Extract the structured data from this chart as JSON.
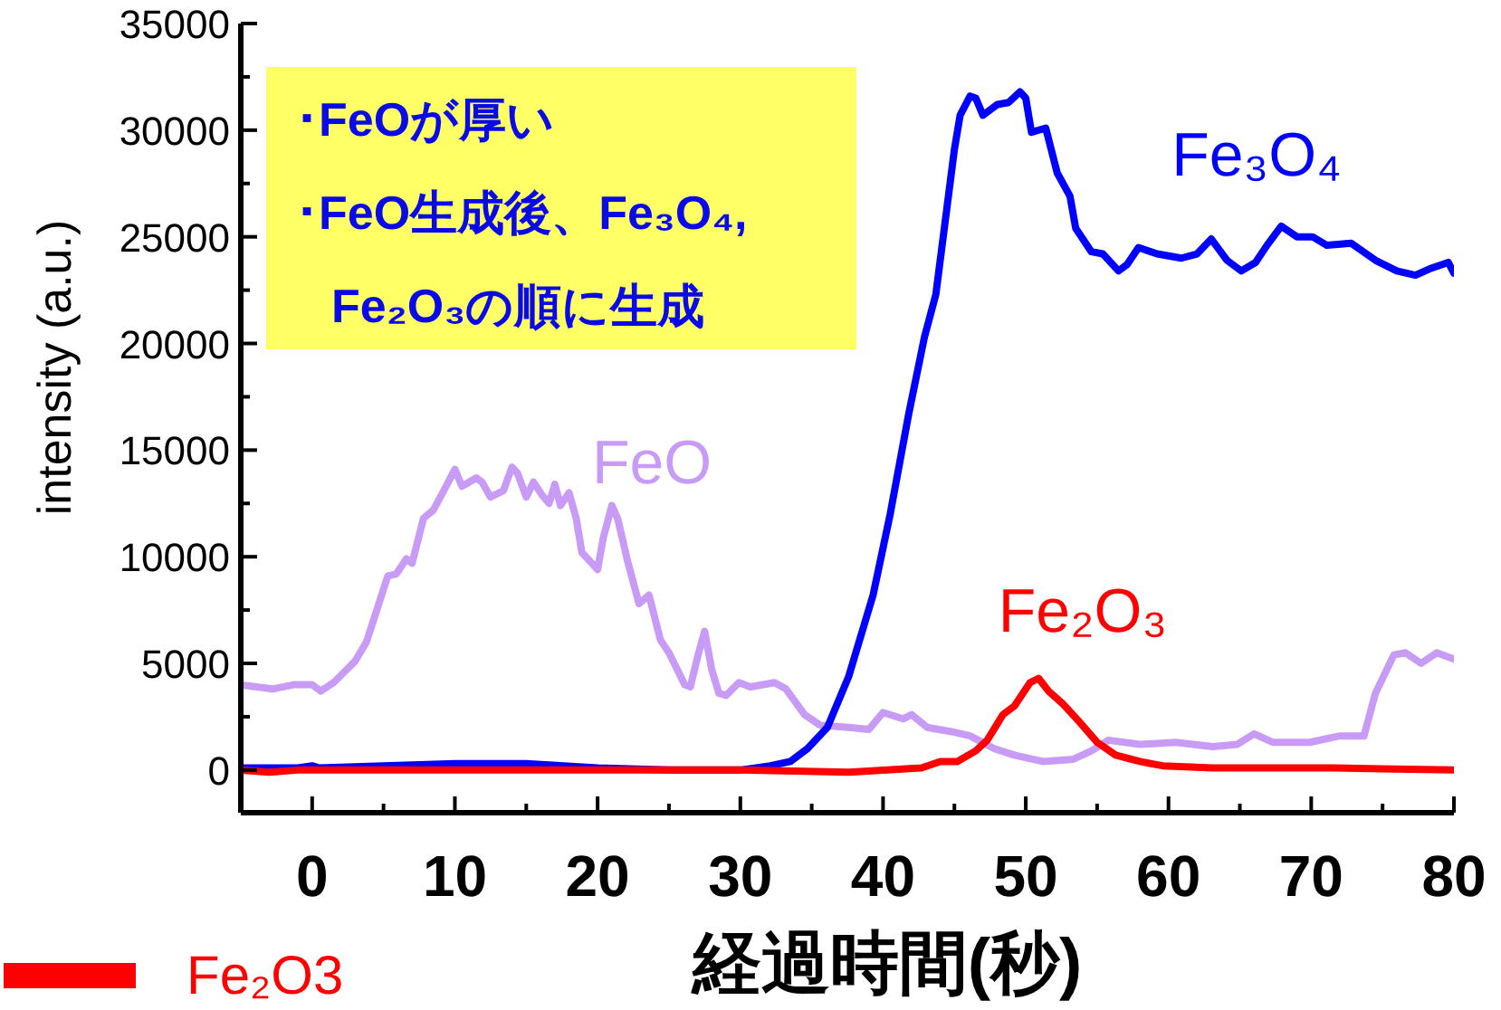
{
  "chart_data": {
    "type": "line",
    "xlabel": "経過時間(秒)",
    "ylabel": "intensity (a.u.)",
    "xlim": [
      -5,
      80
    ],
    "xticks": [
      0,
      {
        "value": 5,
        "label": null
      },
      10,
      {
        "value": 15,
        "label": null
      },
      20,
      {
        "value": 25,
        "label": null
      },
      30,
      {
        "value": 35,
        "label": null
      },
      40,
      {
        "value": 45,
        "label": null
      },
      50,
      {
        "value": 55,
        "label": null
      },
      60,
      {
        "value": 65,
        "label": null
      },
      70,
      {
        "value": 75,
        "label": null
      },
      80
    ],
    "ylim": [
      -2000,
      35000
    ],
    "yticks": [
      0,
      {
        "value": 2500,
        "label": null
      },
      5000,
      {
        "value": 7500,
        "label": null
      },
      10000,
      {
        "value": 12500,
        "label": null
      },
      15000,
      {
        "value": 17500,
        "label": null
      },
      20000,
      {
        "value": 22500,
        "label": null
      },
      25000,
      {
        "value": 27500,
        "label": null
      },
      30000,
      {
        "value": 32500,
        "label": null
      },
      35000
    ],
    "legend": "bottom left",
    "marker": "none",
    "line_style": "solid",
    "annotations": [
      "･FeOが厚い",
      "･FeO生成後、Fe₃O₄,",
      "Fe₂O₃の順に生成",
      "FeO",
      "Fe₃O₄",
      "Fe₂O₃"
    ],
    "series": [
      {
        "color": "#c89bf7",
        "x": [
          -5,
          -2.8,
          -1.3,
          0,
          0.6,
          1.5,
          3,
          3.8,
          5.3,
          5.9,
          6.6,
          7,
          7.8,
          8.5,
          9.3,
          10,
          10.5,
          11.5,
          11.9,
          12.5,
          13.4,
          14,
          14.4,
          15,
          15.5,
          16.1,
          16.6,
          17,
          17.4,
          18,
          18.5,
          18.9,
          20,
          20.4,
          21,
          21.4,
          22.1,
          22.9,
          23.6,
          24.4,
          25,
          26.1,
          26.5,
          27,
          27.5,
          28,
          28.5,
          29,
          29.9,
          30.7,
          32.4,
          33.2,
          34.5,
          35.6,
          37.6,
          39,
          40,
          41.4,
          42,
          43.1,
          44.8,
          46.1,
          47.8,
          49.2,
          51.2,
          53.3,
          54.6,
          55.8,
          58,
          60.5,
          63.1,
          64.8,
          66,
          67.3,
          69.9,
          72,
          73.7,
          74.5,
          75.8,
          76.6,
          77.7,
          78.8,
          80
        ],
        "values": [
          4000,
          3800,
          4000,
          4000,
          3700,
          4100,
          5100,
          6000,
          9100,
          9200,
          9900,
          9700,
          11800,
          12200,
          13200,
          14100,
          13300,
          13700,
          13500,
          12800,
          13100,
          14200,
          13900,
          12800,
          13500,
          12900,
          12500,
          13400,
          12400,
          13000,
          11800,
          10200,
          9400,
          10900,
          12400,
          11800,
          9800,
          7800,
          8200,
          6100,
          5500,
          4000,
          3900,
          5300,
          6500,
          4700,
          3600,
          3500,
          4100,
          3900,
          4100,
          3800,
          2600,
          2100,
          2000,
          1900,
          2700,
          2400,
          2600,
          2000,
          1800,
          1600,
          1000,
          700,
          400,
          500,
          900,
          1400,
          1200,
          1300,
          1100,
          1200,
          1700,
          1300,
          1300,
          1600,
          1600,
          3600,
          5400,
          5500,
          5000,
          5500,
          5200
        ]
      },
      {
        "color": "#0000ff",
        "x": [
          -5,
          -1,
          0,
          0.5,
          5,
          10,
          15,
          20,
          25,
          30,
          32.1,
          33.5,
          34.7,
          36.1,
          37.6,
          39.3,
          40.5,
          41.8,
          42.9,
          43.7,
          45,
          45.4,
          46.1,
          46.5,
          47,
          48,
          48.8,
          49.6,
          50,
          50.4,
          51.4,
          52.2,
          53.1,
          53.5,
          54.6,
          55.4,
          56.5,
          57.1,
          57.9,
          59.2,
          60.9,
          62,
          63,
          64.1,
          65.1,
          66.1,
          66.9,
          67.9,
          69,
          70.1,
          71.1,
          72.8,
          74.5,
          76,
          77.3,
          78.3,
          79.6,
          80
        ],
        "values": [
          100,
          100,
          200,
          100,
          200,
          300,
          300,
          100,
          0,
          0,
          200,
          400,
          1000,
          2000,
          4400,
          8200,
          12000,
          16700,
          20300,
          22300,
          29100,
          30700,
          31600,
          31500,
          30700,
          31200,
          31300,
          31800,
          31500,
          29900,
          30100,
          28000,
          26900,
          25400,
          24300,
          24200,
          23400,
          23700,
          24500,
          24200,
          24000,
          24200,
          24900,
          23900,
          23400,
          23800,
          24600,
          25500,
          25000,
          25000,
          24600,
          24700,
          23900,
          23400,
          23200,
          23500,
          23800,
          23300
        ]
      },
      {
        "name": "Fe₂O3",
        "color": "#ff0000",
        "x": [
          -5,
          -3,
          -1,
          10,
          20,
          30,
          37.6,
          42.7,
          44,
          45.2,
          46.5,
          47.3,
          48.4,
          49.2,
          50.3,
          50.9,
          51.6,
          52.6,
          53.7,
          55,
          56.3,
          58,
          59.6,
          63.1,
          71.6,
          80
        ],
        "values": [
          0,
          -100,
          0,
          0,
          0,
          0,
          -100,
          100,
          400,
          400,
          900,
          1400,
          2600,
          3000,
          4100,
          4300,
          3700,
          3100,
          2300,
          1300,
          700,
          400,
          200,
          100,
          100,
          0
        ]
      }
    ]
  }
}
